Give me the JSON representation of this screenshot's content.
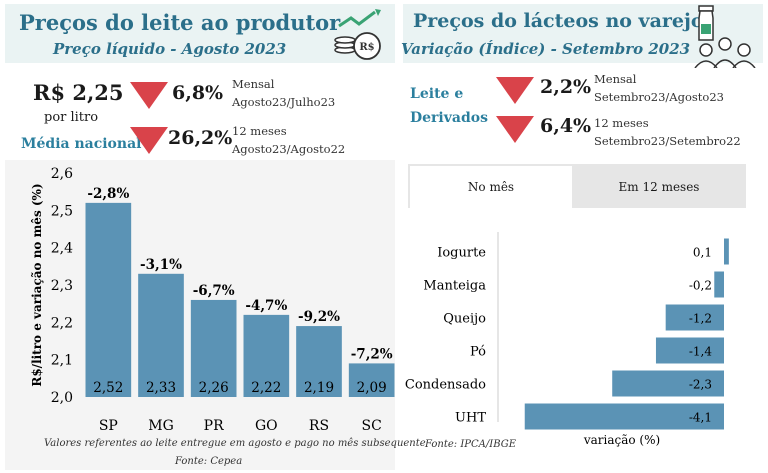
{
  "left_header": {
    "title": "Preços do leite ao produtor",
    "subtitle": "Preço líquido - Agosto 2023",
    "icon": "money-growth-icon"
  },
  "right_header": {
    "title": "Preços do lácteos no varejo",
    "subtitle": "Variação (Índice) - Setembro 2023",
    "icon": "milk-consumers-icon"
  },
  "producer_kpis": {
    "price": "R$ 2,25",
    "unit": "por litro",
    "scope": "Média nacional",
    "monthly_change": "6,8%",
    "monthly_label": "Mensal",
    "monthly_period": "Agosto23/Julho23",
    "yearly_change": "26,2%",
    "yearly_label": "12 meses",
    "yearly_period": "Agosto23/Agosto22",
    "down_color": "#d9434a"
  },
  "retail_kpis": {
    "label_line1": "Leite e",
    "label_line2": "Derivados",
    "monthly_change": "2,2%",
    "monthly_label": "Mensal",
    "monthly_period": "Setembro23/Agosto23",
    "yearly_change": "6,4%",
    "yearly_label": "12 meses",
    "yearly_period": "Setembro23/Setembro22"
  },
  "tabs": [
    {
      "label": "No mês",
      "active": true
    },
    {
      "label": "Em 12 meses",
      "active": false
    }
  ],
  "left_chart_notes": {
    "footnote": "Valores referentes ao leite entregue em agosto e pago no mês subsequente",
    "source": "Fonte: Cepea"
  },
  "right_chart_notes": {
    "source": "Fonte: IPCA/IBGE"
  },
  "chart_data": [
    {
      "type": "bar",
      "ylabel": "R$/litro e variação no mês (%)",
      "ylim": [
        2.0,
        2.6
      ],
      "y_ticks": [
        "2,0",
        "2,1",
        "2,2",
        "2,3",
        "2,4",
        "2,5",
        "2,6"
      ],
      "categories": [
        "SP",
        "MG",
        "PR",
        "GO",
        "RS",
        "SC"
      ],
      "values": [
        2.52,
        2.33,
        2.26,
        2.22,
        2.19,
        2.09
      ],
      "value_labels": [
        "2,52",
        "2,33",
        "2,26",
        "2,22",
        "2,19",
        "2,09"
      ],
      "change_labels": [
        "-2,8%",
        "-3,1%",
        "-6,7%",
        "-4,7%",
        "-9,2%",
        "-7,2%"
      ],
      "bar_color": "#5b93b5",
      "grid": false
    },
    {
      "type": "bar",
      "orientation": "horizontal",
      "xlabel": "variação (%)",
      "categories": [
        "Iogurte",
        "Manteiga",
        "Queijo",
        "Pó",
        "Condensado",
        "UHT"
      ],
      "values": [
        0.1,
        -0.2,
        -1.2,
        -1.4,
        -2.3,
        -4.1
      ],
      "value_labels": [
        "0,1",
        "-0,2",
        "-1,2",
        "-1,4",
        "-2,3",
        "-4,1"
      ],
      "bar_color": "#5b93b5",
      "grid": false
    }
  ]
}
